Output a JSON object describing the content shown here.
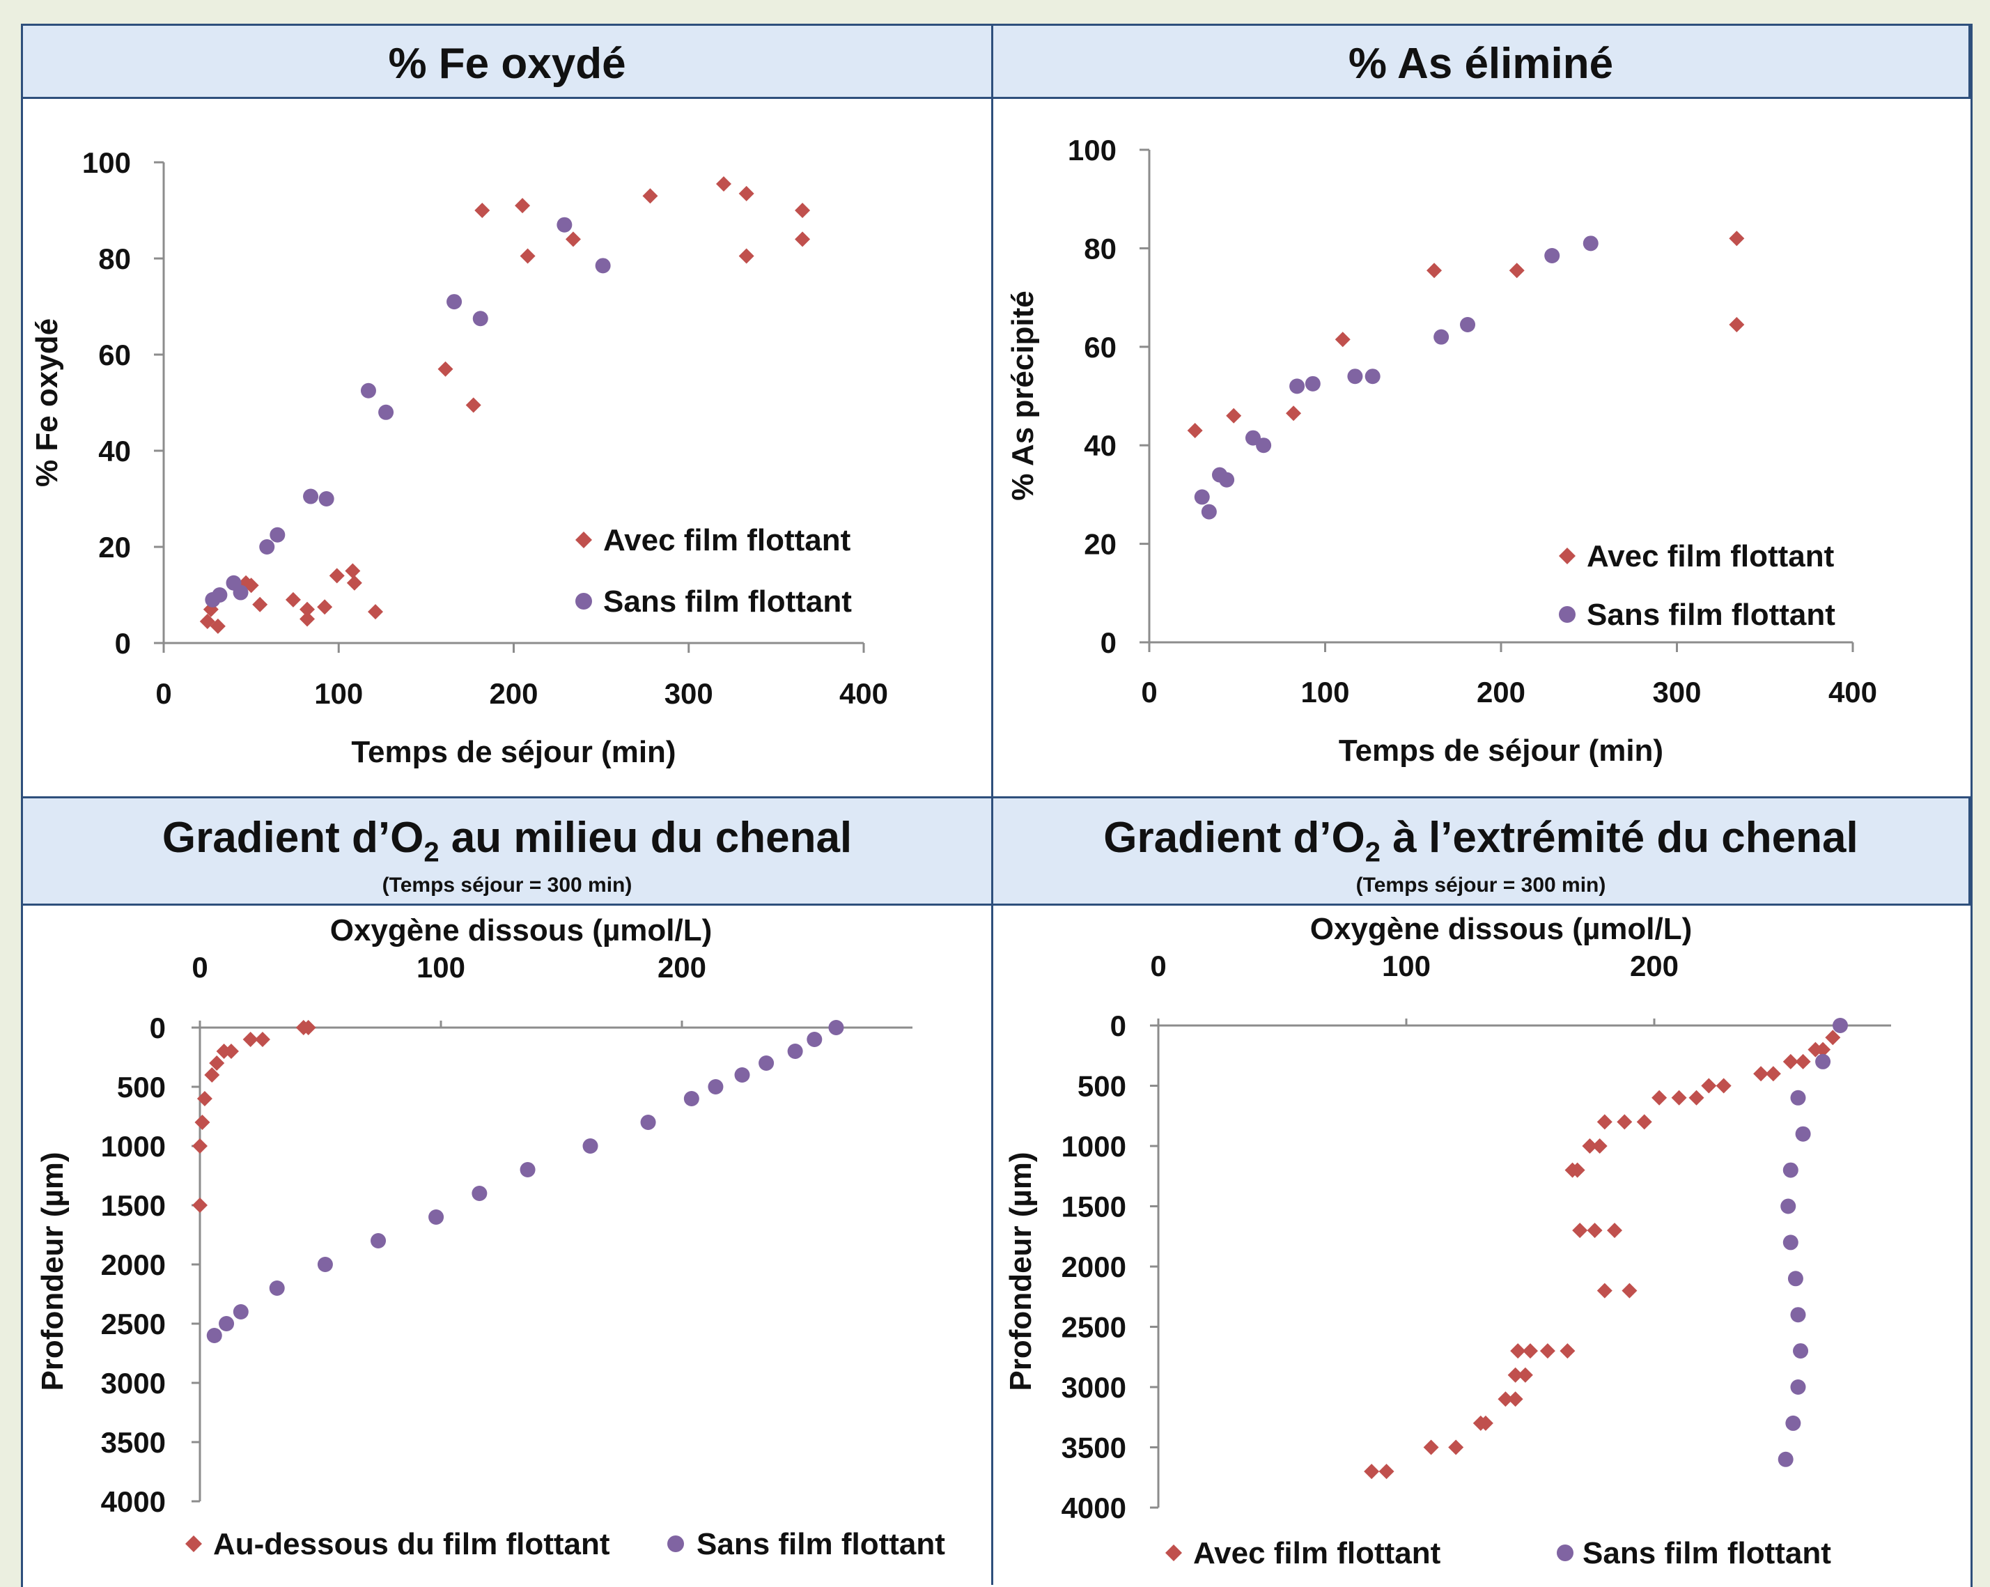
{
  "panels": {
    "top_left": {
      "title": "% Fe oxydé"
    },
    "top_right": {
      "title": "% As éliminé"
    },
    "bottom_left": {
      "title_pre": "Gradient d’O",
      "title_sub": "2",
      "title_post": " au milieu du chenal",
      "subtitle": "(Temps séjour = 300 min)"
    },
    "bottom_right": {
      "title_pre": "Gradient d’O",
      "title_sub": "2",
      "title_post": " à l’extrémité du chenal",
      "subtitle": "(Temps séjour = 300 min)"
    }
  },
  "colors": {
    "red": "#c0504d",
    "purple": "#8064a2",
    "axis": "#8c8c8c",
    "header_bg": "#dde8f6",
    "border": "#2e4f7c"
  },
  "chart_data": [
    {
      "id": "fe",
      "type": "scatter",
      "xlabel": "Temps de séjour (min)",
      "ylabel": "% Fe oxydé",
      "xlim": [
        0,
        400
      ],
      "ylim": [
        0,
        100
      ],
      "xticks": [
        0,
        100,
        200,
        300,
        400
      ],
      "yticks": [
        0,
        20,
        40,
        60,
        80,
        100
      ],
      "legend_position": "bottom-right",
      "series": [
        {
          "name": "Avec film flottant",
          "marker": "diamond",
          "color": "#c0504d",
          "points": [
            [
              25,
              4.5
            ],
            [
              27,
              7
            ],
            [
              31,
              3.5
            ],
            [
              47,
              12.5
            ],
            [
              50,
              12
            ],
            [
              55,
              8
            ],
            [
              74,
              9
            ],
            [
              82,
              7
            ],
            [
              82,
              5
            ],
            [
              92,
              7.5
            ],
            [
              99,
              14
            ],
            [
              108,
              15
            ],
            [
              109,
              12.5
            ],
            [
              121,
              6.5
            ],
            [
              161,
              57
            ],
            [
              177,
              49.5
            ],
            [
              182,
              90
            ],
            [
              205,
              91
            ],
            [
              208,
              80.5
            ],
            [
              234,
              84
            ],
            [
              278,
              93
            ],
            [
              320,
              95.5
            ],
            [
              333,
              93.5
            ],
            [
              333,
              80.5
            ],
            [
              365,
              90
            ],
            [
              365,
              84
            ]
          ]
        },
        {
          "name": "Sans film flottant",
          "marker": "circle",
          "color": "#8064a2",
          "points": [
            [
              28,
              9
            ],
            [
              32,
              10
            ],
            [
              40,
              12.5
            ],
            [
              44,
              10.5
            ],
            [
              59,
              20
            ],
            [
              65,
              22.5
            ],
            [
              84,
              30.5
            ],
            [
              93,
              30
            ],
            [
              117,
              52.5
            ],
            [
              127,
              48
            ],
            [
              166,
              71
            ],
            [
              181,
              67.5
            ],
            [
              229,
              87
            ],
            [
              251,
              78.5
            ]
          ]
        }
      ]
    },
    {
      "id": "as",
      "type": "scatter",
      "xlabel": "Temps de séjour (min)",
      "ylabel": "% As précipité",
      "xlim": [
        0,
        400
      ],
      "ylim": [
        0,
        100
      ],
      "xticks": [
        0,
        100,
        200,
        300,
        400
      ],
      "yticks": [
        0,
        20,
        40,
        60,
        80,
        100
      ],
      "legend_position": "bottom-right",
      "series": [
        {
          "name": "Avec film flottant",
          "marker": "diamond",
          "color": "#c0504d",
          "points": [
            [
              26,
              43
            ],
            [
              48,
              46
            ],
            [
              82,
              46.5
            ],
            [
              110,
              61.5
            ],
            [
              162,
              75.5
            ],
            [
              209,
              75.5
            ],
            [
              334,
              82
            ],
            [
              334,
              64.5
            ]
          ]
        },
        {
          "name": "Sans film flottant",
          "marker": "circle",
          "color": "#8064a2",
          "points": [
            [
              30,
              29.5
            ],
            [
              34,
              26.5
            ],
            [
              40,
              34
            ],
            [
              44,
              33
            ],
            [
              59,
              41.5
            ],
            [
              65,
              40
            ],
            [
              84,
              52
            ],
            [
              93,
              52.5
            ],
            [
              117,
              54
            ],
            [
              127,
              54
            ],
            [
              166,
              62
            ],
            [
              181,
              64.5
            ],
            [
              229,
              78.5
            ],
            [
              251,
              81
            ]
          ]
        }
      ]
    },
    {
      "id": "o2_milieu",
      "type": "scatter",
      "xlabel": "Oxygène dissous (µmol/L)",
      "ylabel": "Profondeur (µm)",
      "xlim": [
        0,
        295
      ],
      "ylim": [
        0,
        4000
      ],
      "y_inverted": true,
      "x_axis_position": "top",
      "xticks": [
        0,
        100,
        200
      ],
      "yticks": [
        0,
        500,
        1000,
        1500,
        2000,
        2500,
        3000,
        3500,
        4000
      ],
      "legend_position": "bottom",
      "series": [
        {
          "name": "Au-dessous du film flottant",
          "marker": "diamond",
          "color": "#c0504d",
          "points": [
            [
              43,
              0
            ],
            [
              45,
              0
            ],
            [
              21,
              100
            ],
            [
              26,
              100
            ],
            [
              10,
              200
            ],
            [
              13,
              200
            ],
            [
              7,
              300
            ],
            [
              5,
              400
            ],
            [
              2,
              600
            ],
            [
              1,
              800
            ],
            [
              0,
              1000
            ],
            [
              0,
              1500
            ]
          ]
        },
        {
          "name": "Sans film flottant",
          "marker": "circle",
          "color": "#8064a2",
          "points": [
            [
              264,
              0
            ],
            [
              255,
              100
            ],
            [
              247,
              200
            ],
            [
              235,
              300
            ],
            [
              225,
              400
            ],
            [
              214,
              500
            ],
            [
              204,
              600
            ],
            [
              186,
              800
            ],
            [
              162,
              1000
            ],
            [
              136,
              1200
            ],
            [
              116,
              1400
            ],
            [
              98,
              1600
            ],
            [
              74,
              1800
            ],
            [
              52,
              2000
            ],
            [
              32,
              2200
            ],
            [
              17,
              2400
            ],
            [
              11,
              2500
            ],
            [
              6,
              2600
            ]
          ]
        }
      ]
    },
    {
      "id": "o2_extremite",
      "type": "scatter",
      "xlabel": "Oxygène dissous (µmol/L)",
      "ylabel": "Profondeur  (µm)",
      "xlim": [
        0,
        295
      ],
      "ylim": [
        0,
        4000
      ],
      "y_inverted": true,
      "x_axis_position": "top",
      "xticks": [
        0,
        100,
        200
      ],
      "yticks": [
        0,
        500,
        1000,
        1500,
        2000,
        2500,
        3000,
        3500,
        4000
      ],
      "legend_position": "bottom",
      "series": [
        {
          "name": "Avec film flottant",
          "marker": "diamond",
          "color": "#c0504d",
          "points": [
            [
              272,
              100
            ],
            [
              268,
              200
            ],
            [
              265,
              200
            ],
            [
              255,
              300
            ],
            [
              260,
              300
            ],
            [
              248,
              400
            ],
            [
              243,
              400
            ],
            [
              228,
              500
            ],
            [
              222,
              500
            ],
            [
              217,
              600
            ],
            [
              210,
              600
            ],
            [
              202,
              600
            ],
            [
              196,
              800
            ],
            [
              188,
              800
            ],
            [
              180,
              800
            ],
            [
              178,
              1000
            ],
            [
              174,
              1000
            ],
            [
              169,
              1200
            ],
            [
              167,
              1200
            ],
            [
              184,
              1700
            ],
            [
              176,
              1700
            ],
            [
              170,
              1700
            ],
            [
              190,
              2200
            ],
            [
              180,
              2200
            ],
            [
              165,
              2700
            ],
            [
              157,
              2700
            ],
            [
              150,
              2700
            ],
            [
              145,
              2700
            ],
            [
              148,
              2900
            ],
            [
              144,
              2900
            ],
            [
              144,
              3100
            ],
            [
              140,
              3100
            ],
            [
              132,
              3300
            ],
            [
              130,
              3300
            ],
            [
              120,
              3500
            ],
            [
              110,
              3500
            ],
            [
              92,
              3700
            ],
            [
              86,
              3700
            ]
          ]
        },
        {
          "name": "Sans film flottant",
          "marker": "circle",
          "color": "#8064a2",
          "points": [
            [
              275,
              0
            ],
            [
              268,
              300
            ],
            [
              258,
              600
            ],
            [
              260,
              900
            ],
            [
              255,
              1200
            ],
            [
              254,
              1500
            ],
            [
              255,
              1800
            ],
            [
              257,
              2100
            ],
            [
              258,
              2400
            ],
            [
              259,
              2700
            ],
            [
              258,
              3000
            ],
            [
              256,
              3300
            ],
            [
              253,
              3600
            ]
          ]
        }
      ]
    }
  ]
}
